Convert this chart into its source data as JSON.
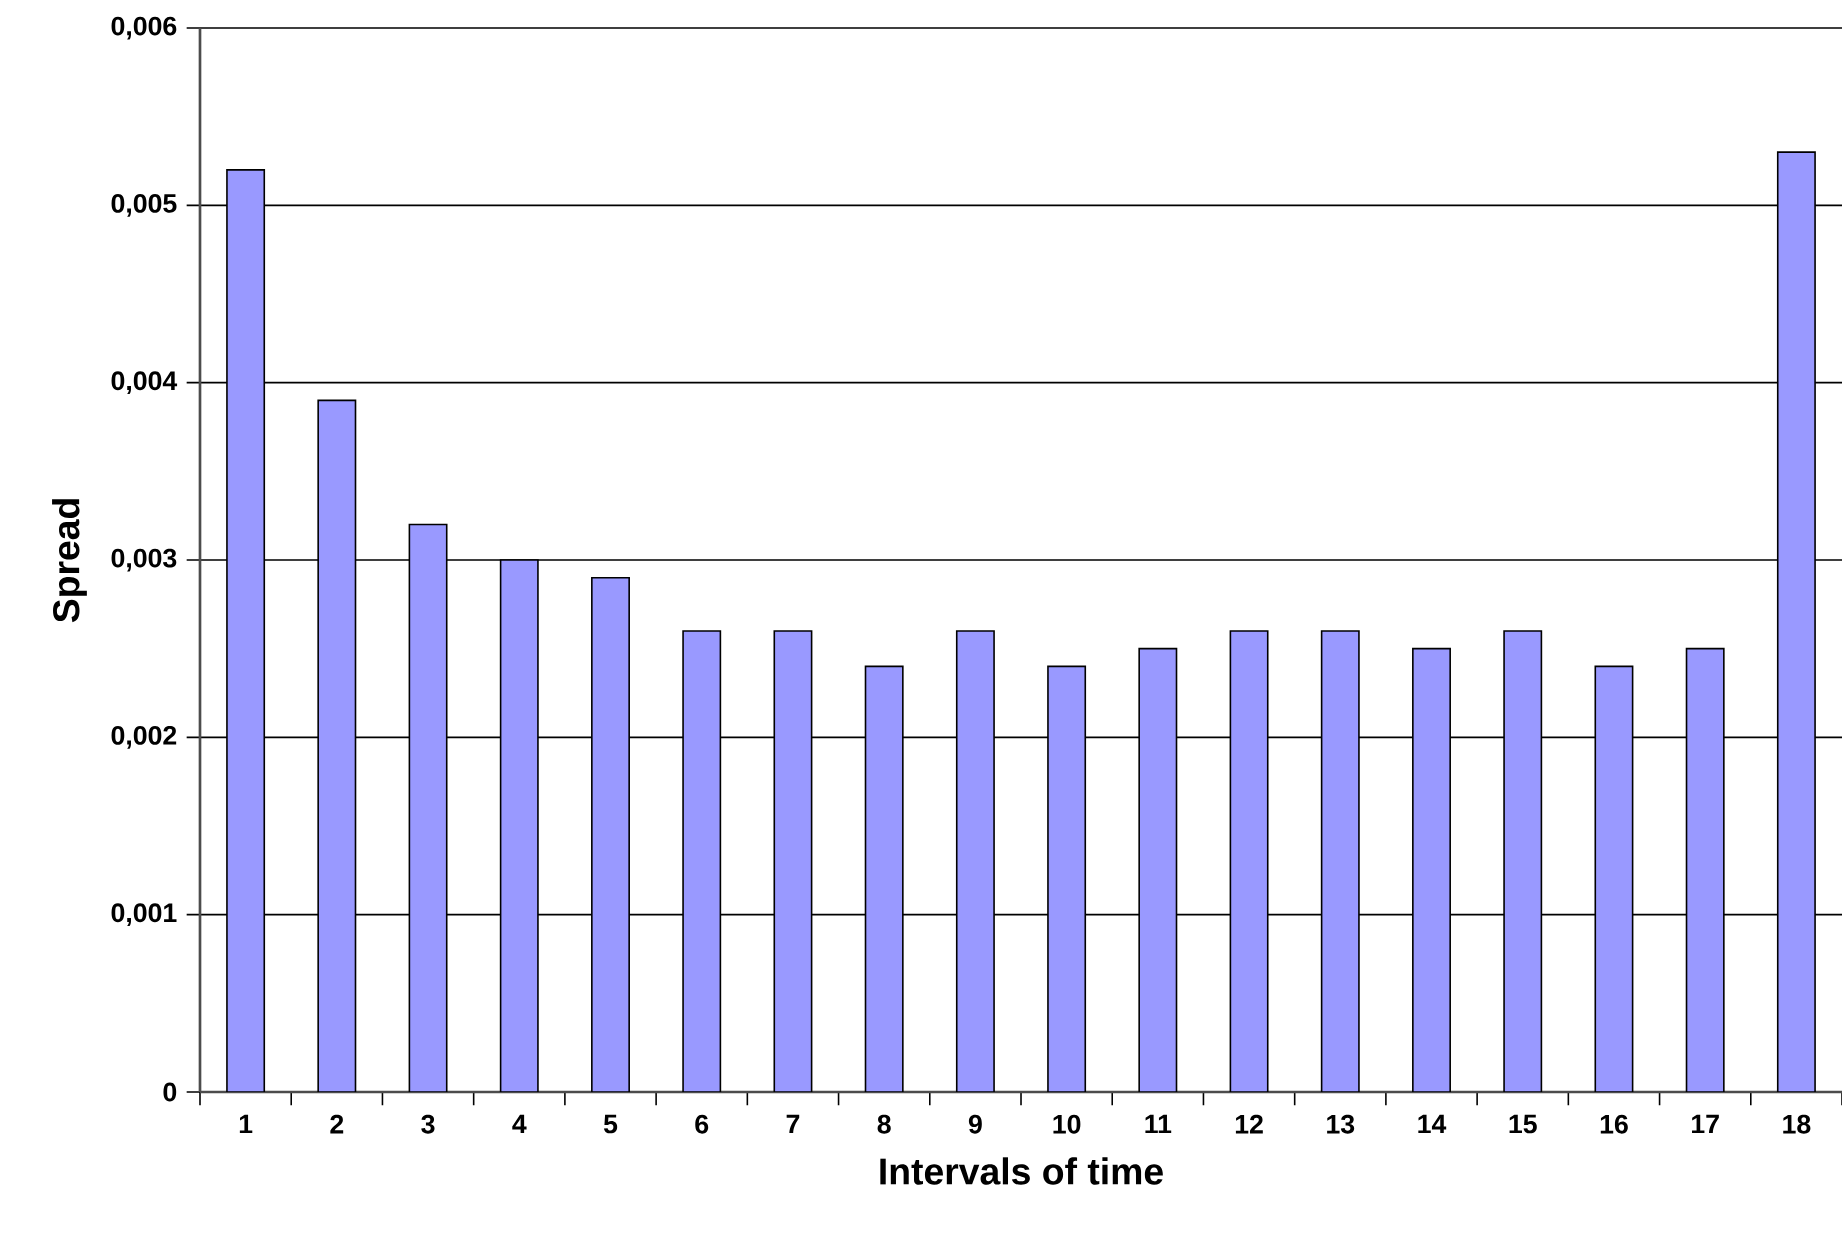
{
  "chart_data": {
    "type": "bar",
    "xlabel": "Intervals of time",
    "ylabel": "Spread",
    "categories": [
      "1",
      "2",
      "3",
      "4",
      "5",
      "6",
      "7",
      "8",
      "9",
      "10",
      "11",
      "12",
      "13",
      "14",
      "15",
      "16",
      "17",
      "18"
    ],
    "values": [
      0.0052,
      0.0039,
      0.0032,
      0.003,
      0.0029,
      0.0026,
      0.0026,
      0.0024,
      0.0026,
      0.0024,
      0.0025,
      0.0026,
      0.0026,
      0.0025,
      0.0026,
      0.0024,
      0.0025,
      0.0053
    ],
    "color": "#9999ff",
    "ylim": [
      0,
      0.006
    ],
    "yticks": [
      0,
      {
        "value": 0.001,
        "label": "0,001"
      },
      {
        "value": 0.002,
        "label": "0,002"
      },
      {
        "value": 0.003,
        "label": "0,003"
      },
      {
        "value": 0.004,
        "label": "0,004"
      },
      {
        "value": 0.005,
        "label": "0,005"
      },
      {
        "value": 0.006,
        "label": "0,006"
      }
    ],
    "grid": "y"
  }
}
